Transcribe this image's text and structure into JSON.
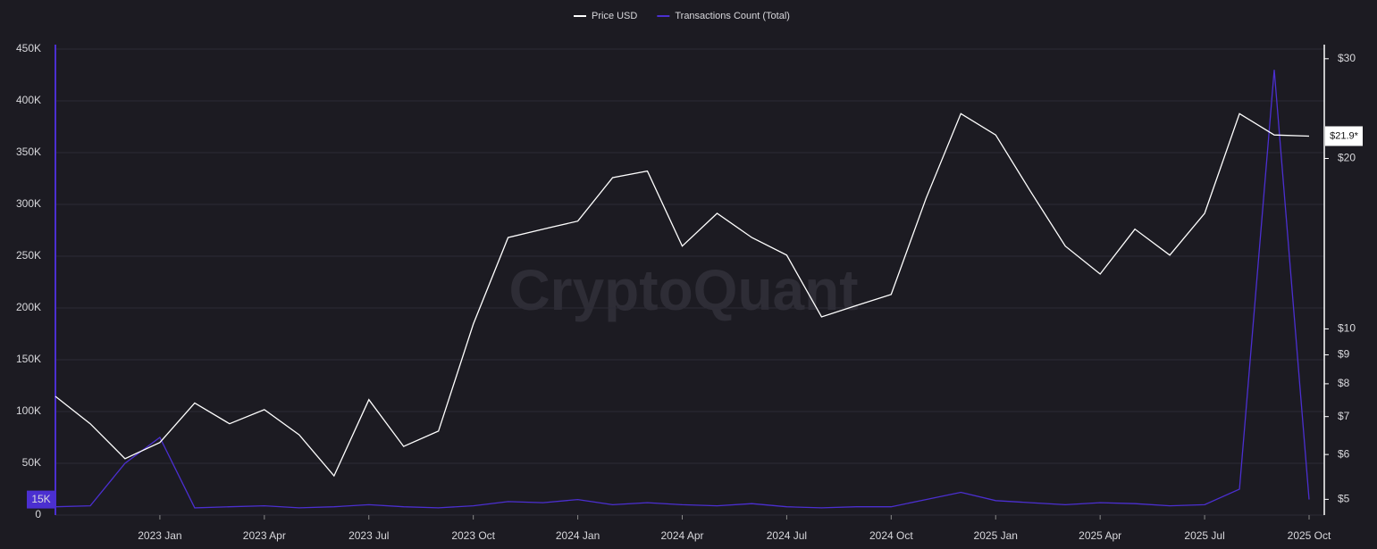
{
  "chart_data": {
    "type": "line",
    "watermark": "CryptoQuant",
    "x": [
      "2022-10",
      "2022-11",
      "2022-12",
      "2023-01",
      "2023-02",
      "2023-03",
      "2023-04",
      "2023-05",
      "2023-06",
      "2023-07",
      "2023-08",
      "2023-09",
      "2023-10",
      "2023-11",
      "2023-12",
      "2024-01",
      "2024-02",
      "2024-03",
      "2024-04",
      "2024-05",
      "2024-06",
      "2024-07",
      "2024-08",
      "2024-09",
      "2024-10",
      "2024-11",
      "2024-12",
      "2025-01",
      "2025-02",
      "2025-03",
      "2025-04",
      "2025-05",
      "2025-06",
      "2025-07",
      "2025-08",
      "2025-09",
      "2025-10"
    ],
    "xlim": [
      "2022-10",
      "2025-10"
    ],
    "xticks": [
      {
        "value": "2023-01",
        "label": "2023 Jan"
      },
      {
        "value": "2023-04",
        "label": "2023 Apr"
      },
      {
        "value": "2023-07",
        "label": "2023 Jul"
      },
      {
        "value": "2023-10",
        "label": "2023 Oct"
      },
      {
        "value": "2024-01",
        "label": "2024 Jan"
      },
      {
        "value": "2024-04",
        "label": "2024 Apr"
      },
      {
        "value": "2024-07",
        "label": "2024 Jul"
      },
      {
        "value": "2024-10",
        "label": "2024 Oct"
      },
      {
        "value": "2025-01",
        "label": "2025 Jan"
      },
      {
        "value": "2025-04",
        "label": "2025 Apr"
      },
      {
        "value": "2025-07",
        "label": "2025 Jul"
      },
      {
        "value": "2025-10",
        "label": "2025 Oct"
      }
    ],
    "ylim": [
      0,
      450000
    ],
    "yticks": [
      0,
      {
        "value": 50000,
        "label": "50K"
      },
      {
        "value": 100000,
        "label": "100K"
      },
      {
        "value": 150000,
        "label": "150K"
      },
      {
        "value": 200000,
        "label": "200K"
      },
      {
        "value": 250000,
        "label": "250K"
      },
      {
        "value": 300000,
        "label": "300K"
      },
      {
        "value": 350000,
        "label": "350K"
      },
      {
        "value": 400000,
        "label": "400K"
      },
      {
        "value": 450000,
        "label": "450K"
      }
    ],
    "y2lim": [
      4.69,
      31.2
    ],
    "y2_log": true,
    "y2ticks": [
      {
        "value": 5,
        "label": "$5"
      },
      {
        "value": 6,
        "label": "$6"
      },
      {
        "value": 7,
        "label": "$7"
      },
      {
        "value": 8,
        "label": "$8"
      },
      {
        "value": 9,
        "label": "$9"
      },
      {
        "value": 10,
        "label": "$10"
      },
      {
        "value": 20,
        "label": "$20"
      },
      {
        "value": 30,
        "label": "$30"
      }
    ],
    "grid": true,
    "y_marker": {
      "value": 15000,
      "label": "15K"
    },
    "y2_marker": {
      "value": 21.9,
      "label": "$21.9*"
    },
    "series": [
      {
        "name": "Price USD",
        "color": "#ffffff",
        "axis": "y2",
        "values": [
          7.6,
          6.8,
          5.9,
          6.3,
          7.4,
          6.8,
          7.2,
          6.5,
          5.5,
          7.5,
          6.2,
          6.6,
          10.2,
          14.5,
          15.0,
          15.5,
          18.5,
          19.0,
          14.0,
          16.0,
          14.5,
          13.5,
          10.5,
          11.0,
          11.5,
          17.0,
          24.0,
          22.0,
          17.5,
          14.0,
          12.5,
          15.0,
          13.5,
          16.0,
          24.0,
          22.0,
          21.9
        ]
      },
      {
        "name": "Transactions Count (Total)",
        "color": "#4b2fd0",
        "values": [
          8000,
          9000,
          50000,
          75000,
          7000,
          8000,
          9000,
          7000,
          8000,
          10000,
          8000,
          7000,
          9000,
          13000,
          12000,
          15000,
          10000,
          12000,
          10000,
          9000,
          11000,
          8000,
          7000,
          8000,
          8000,
          15000,
          22000,
          14000,
          12000,
          10000,
          12000,
          11000,
          9000,
          10000,
          25000,
          430000,
          15000
        ]
      }
    ]
  }
}
